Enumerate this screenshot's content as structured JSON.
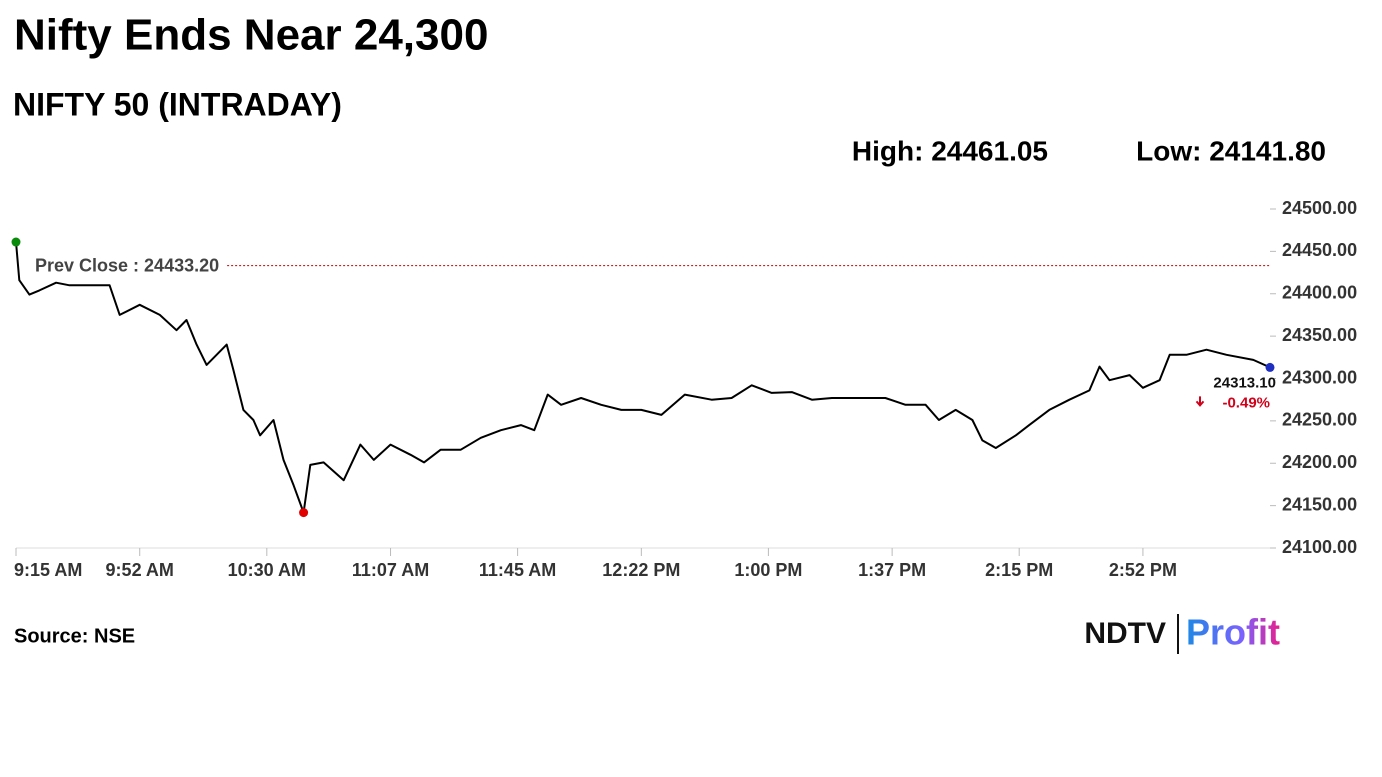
{
  "chart_data": {
    "type": "line",
    "title": "Nifty Ends Near 24,300",
    "subtitle": "NIFTY 50 (INTRADAY)",
    "high_label": "High: 24461.05",
    "low_label": "Low: 24141.80",
    "prev_close_label": "Prev Close : 24433.20",
    "prev_close": 24433.2,
    "prev_close_color": "#c00000",
    "last_label": "24313.10",
    "change_label": "-0.49%",
    "change_color": "#d0021b",
    "start_color": "#0a8a0a",
    "low_color": "#e00000",
    "end_color": "#1f2fbf",
    "source": "Source: NSE",
    "logo": [
      "NDTV",
      "Profit"
    ],
    "x": [
      "9:15 AM",
      "9:16 AM",
      "9:19 AM",
      "9:22 AM",
      "9:27 AM",
      "9:31 AM",
      "9:37 AM",
      "9:43 AM",
      "9:46 AM",
      "9:52 AM",
      "9:58 AM",
      "10:03 AM",
      "10:06 AM",
      "10:09 AM",
      "10:12 AM",
      "10:15 AM",
      "10:18 AM",
      "10:20 AM",
      "10:23 AM",
      "10:26 AM",
      "10:28 AM",
      "10:32 AM",
      "10:35 AM",
      "10:38 AM",
      "10:41 AM",
      "10:43 AM",
      "10:47 AM",
      "10:53 AM",
      "10:58 AM",
      "11:02 AM",
      "11:07 AM",
      "11:13 AM",
      "11:17 AM",
      "11:22 AM",
      "11:28 AM",
      "11:34 AM",
      "11:40 AM",
      "11:46 AM",
      "11:50 AM",
      "11:54 AM",
      "11:58 AM",
      "12:04 PM",
      "12:10 PM",
      "12:16 PM",
      "12:22 PM",
      "12:28 PM",
      "12:35 PM",
      "12:43 PM",
      "12:49 PM",
      "12:55 PM",
      "1:01 PM",
      "1:07 PM",
      "1:13 PM",
      "1:19 PM",
      "1:28 PM",
      "1:35 PM",
      "1:41 PM",
      "1:47 PM",
      "1:51 PM",
      "1:56 PM",
      "2:01 PM",
      "2:04 PM",
      "2:08 PM",
      "2:14 PM",
      "2:18 PM",
      "2:24 PM",
      "2:30 PM",
      "2:36 PM",
      "2:39 PM",
      "2:42 PM",
      "2:48 PM",
      "2:52 PM",
      "2:57 PM",
      "3:00 PM",
      "3:05 PM",
      "3:11 PM",
      "3:17 PM",
      "3:25 PM",
      "3:30 PM"
    ],
    "series": [
      {
        "name": "NIFTY 50",
        "color": "#000000",
        "values": [
          24461.05,
          24416,
          24399,
          24404,
          24413,
          24410,
          24410,
          24410,
          24375,
          24387,
          24375,
          24357,
          24369,
          24340,
          24316,
          24328,
          24340,
          24310,
          24263,
          24251,
          24233,
          24251,
          24204,
          24174,
          24141.8,
          24198,
          24201,
          24180,
          24222,
          24204,
          24222,
          24210,
          24201,
          24216,
          24216,
          24230,
          24239,
          24245,
          24239,
          24281,
          24269,
          24277,
          24269,
          24263,
          24263,
          24257,
          24281,
          24275,
          24277,
          24292,
          24283,
          24284,
          24275,
          24277,
          24277,
          24277,
          24269,
          24269,
          24251,
          24263,
          24251,
          24227,
          24218,
          24233,
          24245,
          24263,
          24275,
          24286,
          24314,
          24298,
          24304,
          24289,
          24298,
          24328,
          24328,
          24334,
          24328,
          24322,
          24313.1
        ]
      }
    ],
    "xlim": [
      "9:15 AM",
      "3:30 PM"
    ],
    "xticks": [
      "9:15 AM",
      "9:52 AM",
      "10:30 AM",
      "11:07 AM",
      "11:45 AM",
      "12:22 PM",
      "1:00 PM",
      "1:37 PM",
      "2:15 PM",
      "2:52 PM"
    ],
    "ylim": [
      24100,
      24500
    ],
    "yticks": [
      {
        "value": 24100,
        "label": "24100.00"
      },
      {
        "value": 24150,
        "label": "24150.00"
      },
      {
        "value": 24200,
        "label": "24200.00"
      },
      {
        "value": 24250,
        "label": "24250.00"
      },
      {
        "value": 24300,
        "label": "24300.00"
      },
      {
        "value": 24350,
        "label": "24350.00"
      },
      {
        "value": 24400,
        "label": "24400.00"
      },
      {
        "value": 24450,
        "label": "24450.00"
      },
      {
        "value": 24500,
        "label": "24500.00"
      }
    ]
  }
}
